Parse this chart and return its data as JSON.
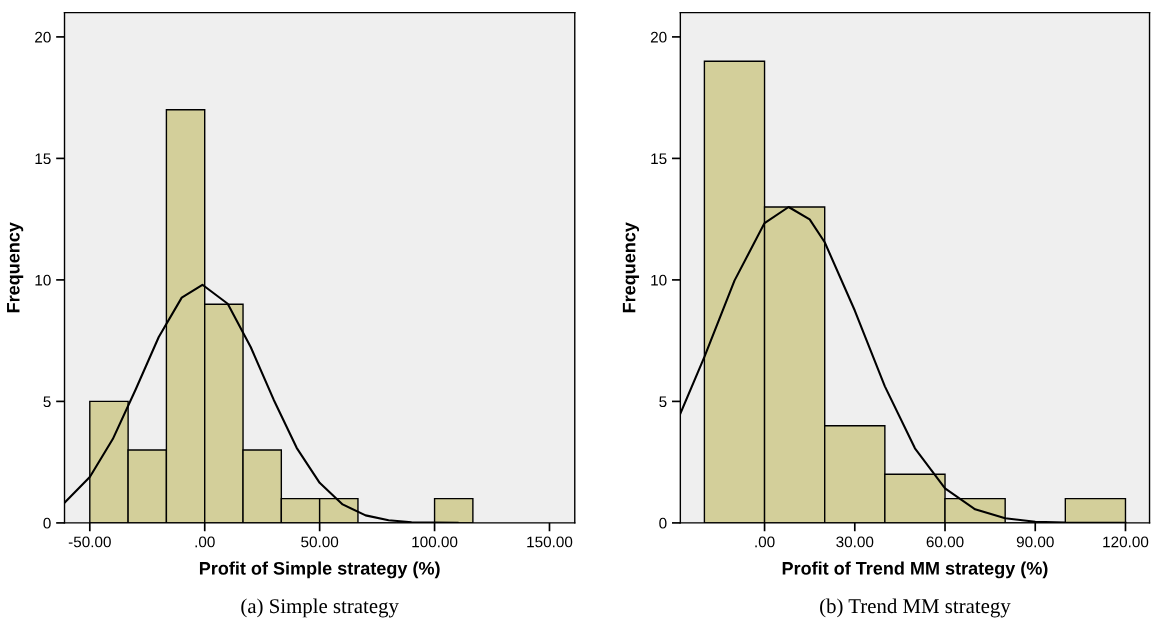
{
  "chart_data": [
    {
      "type": "histogram",
      "xlabel": "Profit of Simple strategy (%)",
      "ylabel": "Frequency",
      "bins": [
        -50,
        -33.33,
        -16.67,
        0,
        16.67,
        33.33,
        50,
        66.67,
        83.33,
        100,
        116.67
      ],
      "values": [
        5,
        3,
        17,
        9,
        3,
        1,
        1,
        0,
        0,
        1
      ],
      "color": "#d3cf9a",
      "series": [
        {
          "type": "line",
          "color": "#000000",
          "x": [
            -61,
            -50,
            -40,
            -30,
            -20,
            -10,
            -1,
            10,
            20,
            30,
            40,
            50,
            60,
            70,
            80,
            90,
            100,
            110
          ],
          "values": [
            0.83,
            1.89,
            3.45,
            5.5,
            7.65,
            9.27,
            9.8,
            9.02,
            7.24,
            5.07,
            3.09,
            1.65,
            0.76,
            0.31,
            0.11,
            0.03,
            0.01,
            0
          ]
        }
      ],
      "xlim": [
        -61,
        161
      ],
      "ylim": [
        0,
        21
      ],
      "xticks": [
        {
          "value": -50,
          "label": "-50.00"
        },
        {
          "value": 0,
          "label": ".00"
        },
        {
          "value": 50,
          "label": "50.00"
        },
        {
          "value": 100,
          "label": "100.00"
        },
        {
          "value": 150,
          "label": "150.00"
        }
      ],
      "yticks": [
        0,
        5,
        10,
        15,
        20
      ],
      "grid": false,
      "legend": false,
      "annotations": [
        "(a) Simple strategy"
      ]
    },
    {
      "type": "histogram",
      "xlabel": "Profit of Trend MM strategy (%)",
      "ylabel": "Frequency",
      "bins": [
        -20,
        0,
        20,
        40,
        60,
        80,
        100,
        120
      ],
      "values": [
        19,
        13,
        4,
        2,
        1,
        0,
        1
      ],
      "color": "#d3cf9a",
      "series": [
        {
          "type": "line",
          "color": "#000000",
          "x": [
            -28,
            -20,
            -10,
            0,
            8,
            15,
            20,
            30,
            40,
            50,
            60,
            70,
            80,
            90,
            100,
            110,
            120
          ],
          "values": [
            4.5,
            6.83,
            9.97,
            12.34,
            13,
            12.49,
            11.55,
            8.74,
            5.62,
            3.07,
            1.42,
            0.56,
            0.19,
            0.05,
            0.01,
            0,
            0
          ]
        }
      ],
      "xlim": [
        -28,
        128
      ],
      "ylim": [
        0,
        21
      ],
      "xticks": [
        {
          "value": 0,
          "label": ".00"
        },
        {
          "value": 30,
          "label": "30.00"
        },
        {
          "value": 60,
          "label": "60.00"
        },
        {
          "value": 90,
          "label": "90.00"
        },
        {
          "value": 120,
          "label": "120.00"
        }
      ],
      "yticks": [
        0,
        5,
        10,
        15,
        20
      ],
      "grid": false,
      "legend": false,
      "annotations": [
        "(b) Trend MM strategy"
      ]
    }
  ]
}
